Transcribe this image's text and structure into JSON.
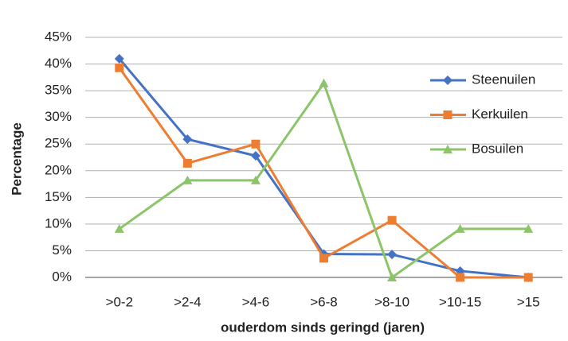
{
  "chart_data": {
    "type": "line",
    "categories": [
      ">0-2",
      ">2-4",
      ">4-6",
      ">6-8",
      ">8-10",
      ">10-15",
      ">15"
    ],
    "series": [
      {
        "name": "Steenuilen",
        "color": "#4472c4",
        "marker": "diamond",
        "values": [
          41,
          25.9,
          22.8,
          4.4,
          4.3,
          1.2,
          0
        ]
      },
      {
        "name": "Kerkuilen",
        "color": "#ed7d31",
        "marker": "square",
        "values": [
          39.3,
          21.4,
          25,
          3.6,
          10.7,
          0,
          0
        ]
      },
      {
        "name": "Bosuilen",
        "color": "#8cc46a",
        "marker": "triangle",
        "values": [
          9.1,
          18.2,
          18.2,
          36.4,
          0,
          9.1,
          9.1
        ]
      }
    ],
    "ylim": [
      0,
      45
    ],
    "yticks": [
      {
        "value": 0,
        "label": "0%"
      },
      {
        "value": 5,
        "label": "5%"
      },
      {
        "value": 10,
        "label": "10%"
      },
      {
        "value": 15,
        "label": "15%"
      },
      {
        "value": 20,
        "label": "20%"
      },
      {
        "value": 25,
        "label": "25%"
      },
      {
        "value": 30,
        "label": "30%"
      },
      {
        "value": 35,
        "label": "35%"
      },
      {
        "value": 40,
        "label": "40%"
      },
      {
        "value": 45,
        "label": "45%"
      }
    ],
    "ylabel": "Percentage",
    "xlabel": "ouderdom sinds geringd (jaren)",
    "grid": true,
    "legend": "right"
  }
}
